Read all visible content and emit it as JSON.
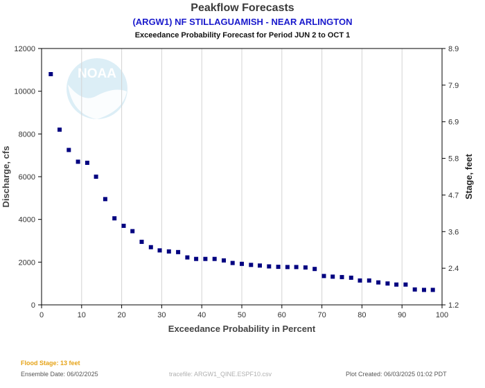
{
  "header": {
    "title": "Peakflow Forecasts",
    "subtitle": "(ARGW1) NF STILLAGUAMISH - NEAR ARLINGTON",
    "period": "Exceedance Probability Forecast for Period JUN 2 to OCT 1"
  },
  "footer": {
    "flood_stage": "Flood Stage: 13 feet",
    "ensemble_date": "Ensemble Date: 06/02/2025",
    "tracefile": "tracefile: ARGW1_QINE.ESPF10.csv",
    "plot_created": "Plot Created: 06/03/2025 01:02 PDT"
  },
  "logo": {
    "text": "NOAA"
  },
  "colors": {
    "marker": "#000080",
    "grid": "#d3d3d3",
    "frame": "#000000",
    "title": "#3b3b3b",
    "subtitle": "#1a1acc",
    "flood": "#e6a317"
  },
  "chart_data": {
    "type": "scatter",
    "xlabel": "Exceedance Probability in Percent",
    "ylabel": "Discharge, cfs",
    "y2label": "Stage, feet",
    "xlim": [
      0,
      100
    ],
    "ylim": [
      0,
      12000
    ],
    "xticks": [
      0,
      10,
      20,
      30,
      40,
      50,
      60,
      70,
      80,
      90,
      100
    ],
    "yticks": [
      0,
      2000,
      4000,
      6000,
      8000,
      10000,
      12000
    ],
    "y2ticks": [
      "1.2",
      "2.4",
      "3.6",
      "4.7",
      "5.8",
      "6.9",
      "7.9",
      "8.9"
    ],
    "grid": "vertical",
    "x": [
      2.3,
      4.5,
      6.8,
      9.1,
      11.4,
      13.6,
      15.9,
      18.2,
      20.5,
      22.7,
      25.0,
      27.3,
      29.5,
      31.8,
      34.1,
      36.4,
      38.6,
      40.9,
      43.2,
      45.5,
      47.7,
      50.0,
      52.3,
      54.5,
      56.8,
      59.1,
      61.4,
      63.6,
      65.9,
      68.2,
      70.5,
      72.7,
      75.0,
      77.3,
      79.5,
      81.8,
      84.1,
      86.4,
      88.6,
      90.9,
      93.2,
      95.5,
      97.7
    ],
    "y": [
      10800,
      8200,
      7250,
      6700,
      6650,
      6000,
      4950,
      4050,
      3700,
      3450,
      2950,
      2700,
      2550,
      2500,
      2470,
      2220,
      2150,
      2150,
      2150,
      2080,
      1960,
      1920,
      1870,
      1840,
      1800,
      1780,
      1770,
      1770,
      1750,
      1680,
      1350,
      1320,
      1300,
      1270,
      1140,
      1140,
      1050,
      1000,
      950,
      950,
      720,
      700,
      700
    ]
  }
}
